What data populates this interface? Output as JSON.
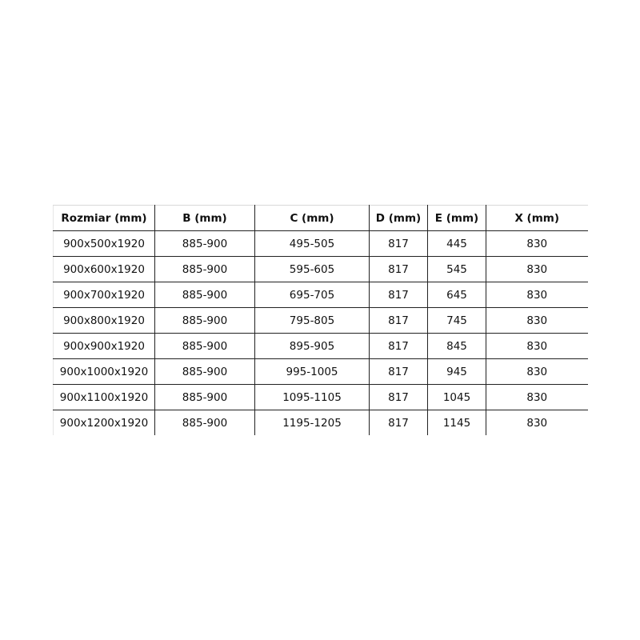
{
  "table": {
    "headers": [
      "Rozmiar (mm)",
      "B (mm)",
      "C (mm)",
      "D (mm)",
      "E (mm)",
      "X (mm)"
    ],
    "rows": [
      [
        "900x500x1920",
        "885-900",
        "495-505",
        "817",
        "445",
        "830"
      ],
      [
        "900x600x1920",
        "885-900",
        "595-605",
        "817",
        "545",
        "830"
      ],
      [
        "900x700x1920",
        "885-900",
        "695-705",
        "817",
        "645",
        "830"
      ],
      [
        "900x800x1920",
        "885-900",
        "795-805",
        "817",
        "745",
        "830"
      ],
      [
        "900x900x1920",
        "885-900",
        "895-905",
        "817",
        "845",
        "830"
      ],
      [
        "900x1000x1920",
        "885-900",
        "995-1005",
        "817",
        "945",
        "830"
      ],
      [
        "900x1100x1920",
        "885-900",
        "1095-1105",
        "817",
        "1045",
        "830"
      ],
      [
        "900x1200x1920",
        "885-900",
        "1195-1205",
        "817",
        "1145",
        "830"
      ]
    ]
  }
}
